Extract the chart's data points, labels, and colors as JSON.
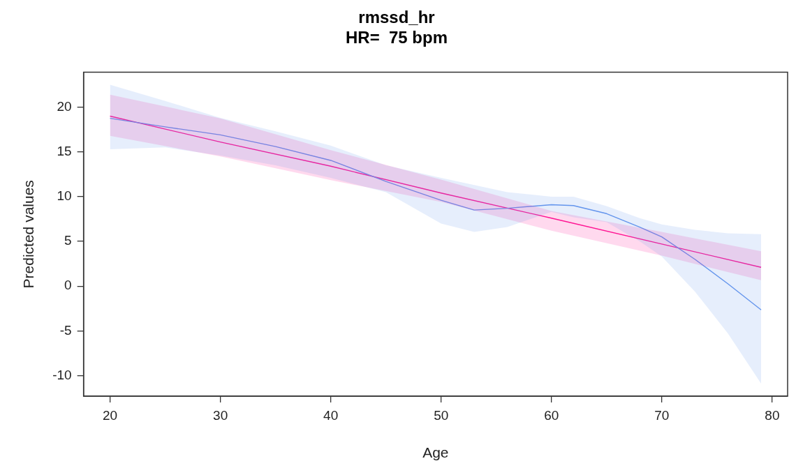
{
  "chart_data": {
    "type": "line",
    "title": "rmssd_hr",
    "subtitle": "HR=  75 bpm",
    "xlabel": "Age",
    "ylabel": "Predicted values",
    "xlim": [
      17.6,
      81.4
    ],
    "ylim": [
      -12.3,
      23.9
    ],
    "xticks": [
      20,
      30,
      40,
      50,
      60,
      70,
      80
    ],
    "yticks": [
      -10,
      -5,
      0,
      5,
      10,
      15,
      20
    ],
    "grid": false,
    "legend": false,
    "marker": "none",
    "series": [
      {
        "color": "#6495ed",
        "x": [
          20,
          25,
          30,
          35,
          40,
          45,
          50,
          53,
          56,
          60,
          62,
          65,
          68,
          70,
          73,
          76,
          79
        ],
        "values": [
          18.75,
          17.8,
          16.9,
          15.6,
          14.05,
          11.7,
          9.6,
          8.5,
          8.7,
          9.1,
          9.0,
          8.1,
          6.6,
          5.5,
          3.0,
          0.25,
          -2.65
        ],
        "lower": [
          15.3,
          15.5,
          14.6,
          13.5,
          12.1,
          10.5,
          7.0,
          6.05,
          6.6,
          8.3,
          7.7,
          7.15,
          5.0,
          3.3,
          -0.6,
          -5.3,
          -10.9
        ],
        "upper": [
          22.5,
          20.7,
          18.8,
          17.3,
          15.7,
          13.5,
          12.1,
          11.3,
          10.5,
          10.0,
          10.0,
          8.95,
          7.6,
          6.9,
          6.3,
          5.9,
          5.8
        ]
      },
      {
        "color": "#ff1493",
        "x": [
          20,
          30,
          40,
          50,
          60,
          70,
          79
        ],
        "values": [
          19.0,
          16.1,
          13.4,
          10.4,
          7.6,
          4.7,
          2.1
        ],
        "lower": [
          16.8,
          14.5,
          11.85,
          9.4,
          6.2,
          3.4,
          0.66
        ],
        "upper": [
          21.4,
          18.75,
          15.2,
          11.9,
          8.4,
          6.05,
          3.9
        ]
      }
    ]
  }
}
